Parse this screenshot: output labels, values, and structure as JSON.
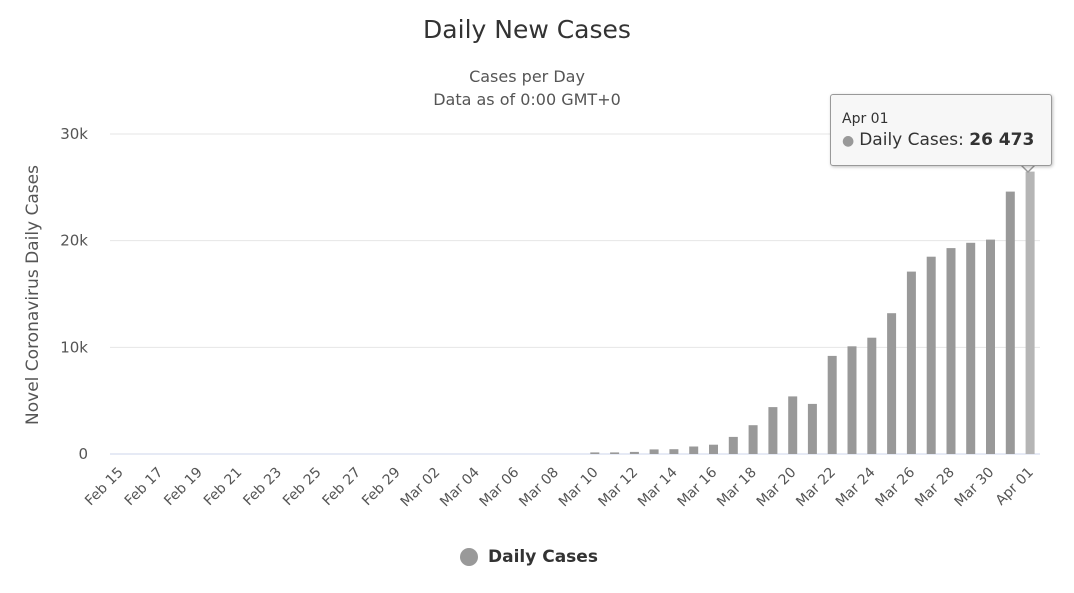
{
  "chart_data": {
    "type": "bar",
    "title": "Daily New Cases",
    "subtitle_line1": "Cases per Day",
    "subtitle_line2": "Data as of 0:00 GMT+0",
    "ylabel": "Novel Coronavirus Daily Cases",
    "ylim": [
      0,
      30000
    ],
    "yticks": [
      0,
      10000,
      20000,
      30000
    ],
    "ytick_labels": [
      "0",
      "10k",
      "20k",
      "30k"
    ],
    "grid": true,
    "legend_position": "bottom",
    "categories": [
      "Feb 15",
      "Feb 16",
      "Feb 17",
      "Feb 18",
      "Feb 19",
      "Feb 20",
      "Feb 21",
      "Feb 22",
      "Feb 23",
      "Feb 24",
      "Feb 25",
      "Feb 26",
      "Feb 27",
      "Feb 28",
      "Feb 29",
      "Mar 01",
      "Mar 02",
      "Mar 03",
      "Mar 04",
      "Mar 05",
      "Mar 06",
      "Mar 07",
      "Mar 08",
      "Mar 09",
      "Mar 10",
      "Mar 11",
      "Mar 12",
      "Mar 13",
      "Mar 14",
      "Mar 15",
      "Mar 16",
      "Mar 17",
      "Mar 18",
      "Mar 19",
      "Mar 20",
      "Mar 21",
      "Mar 22",
      "Mar 23",
      "Mar 24",
      "Mar 25",
      "Mar 26",
      "Mar 27",
      "Mar 28",
      "Mar 29",
      "Mar 30",
      "Mar 31",
      "Apr 01"
    ],
    "xtick_labels": [
      "Feb 15",
      "Feb 17",
      "Feb 19",
      "Feb 21",
      "Feb 23",
      "Feb 25",
      "Feb 27",
      "Feb 29",
      "Mar 02",
      "Mar 04",
      "Mar 06",
      "Mar 08",
      "Mar 10",
      "Mar 12",
      "Mar 14",
      "Mar 16",
      "Mar 18",
      "Mar 20",
      "Mar 22",
      "Mar 24",
      "Mar 26",
      "Mar 28",
      "Mar 30",
      "Apr 01"
    ],
    "series": [
      {
        "name": "Daily Cases",
        "color": "#999999",
        "highlight_color": "#b5b5b5",
        "values": [
          0,
          0,
          0,
          0,
          0,
          0,
          0,
          0,
          0,
          0,
          0,
          0,
          0,
          0,
          0,
          0,
          0,
          0,
          0,
          0,
          0,
          0,
          0,
          0,
          150,
          150,
          200,
          430,
          450,
          700,
          870,
          1600,
          2700,
          4400,
          5400,
          4700,
          9200,
          10100,
          10900,
          13200,
          17100,
          18500,
          19300,
          19800,
          20100,
          24600,
          26473
        ]
      }
    ],
    "tooltip": {
      "date": "Apr 01",
      "series_label": "Daily Cases:",
      "value_label": "26 473",
      "index": 46
    }
  }
}
